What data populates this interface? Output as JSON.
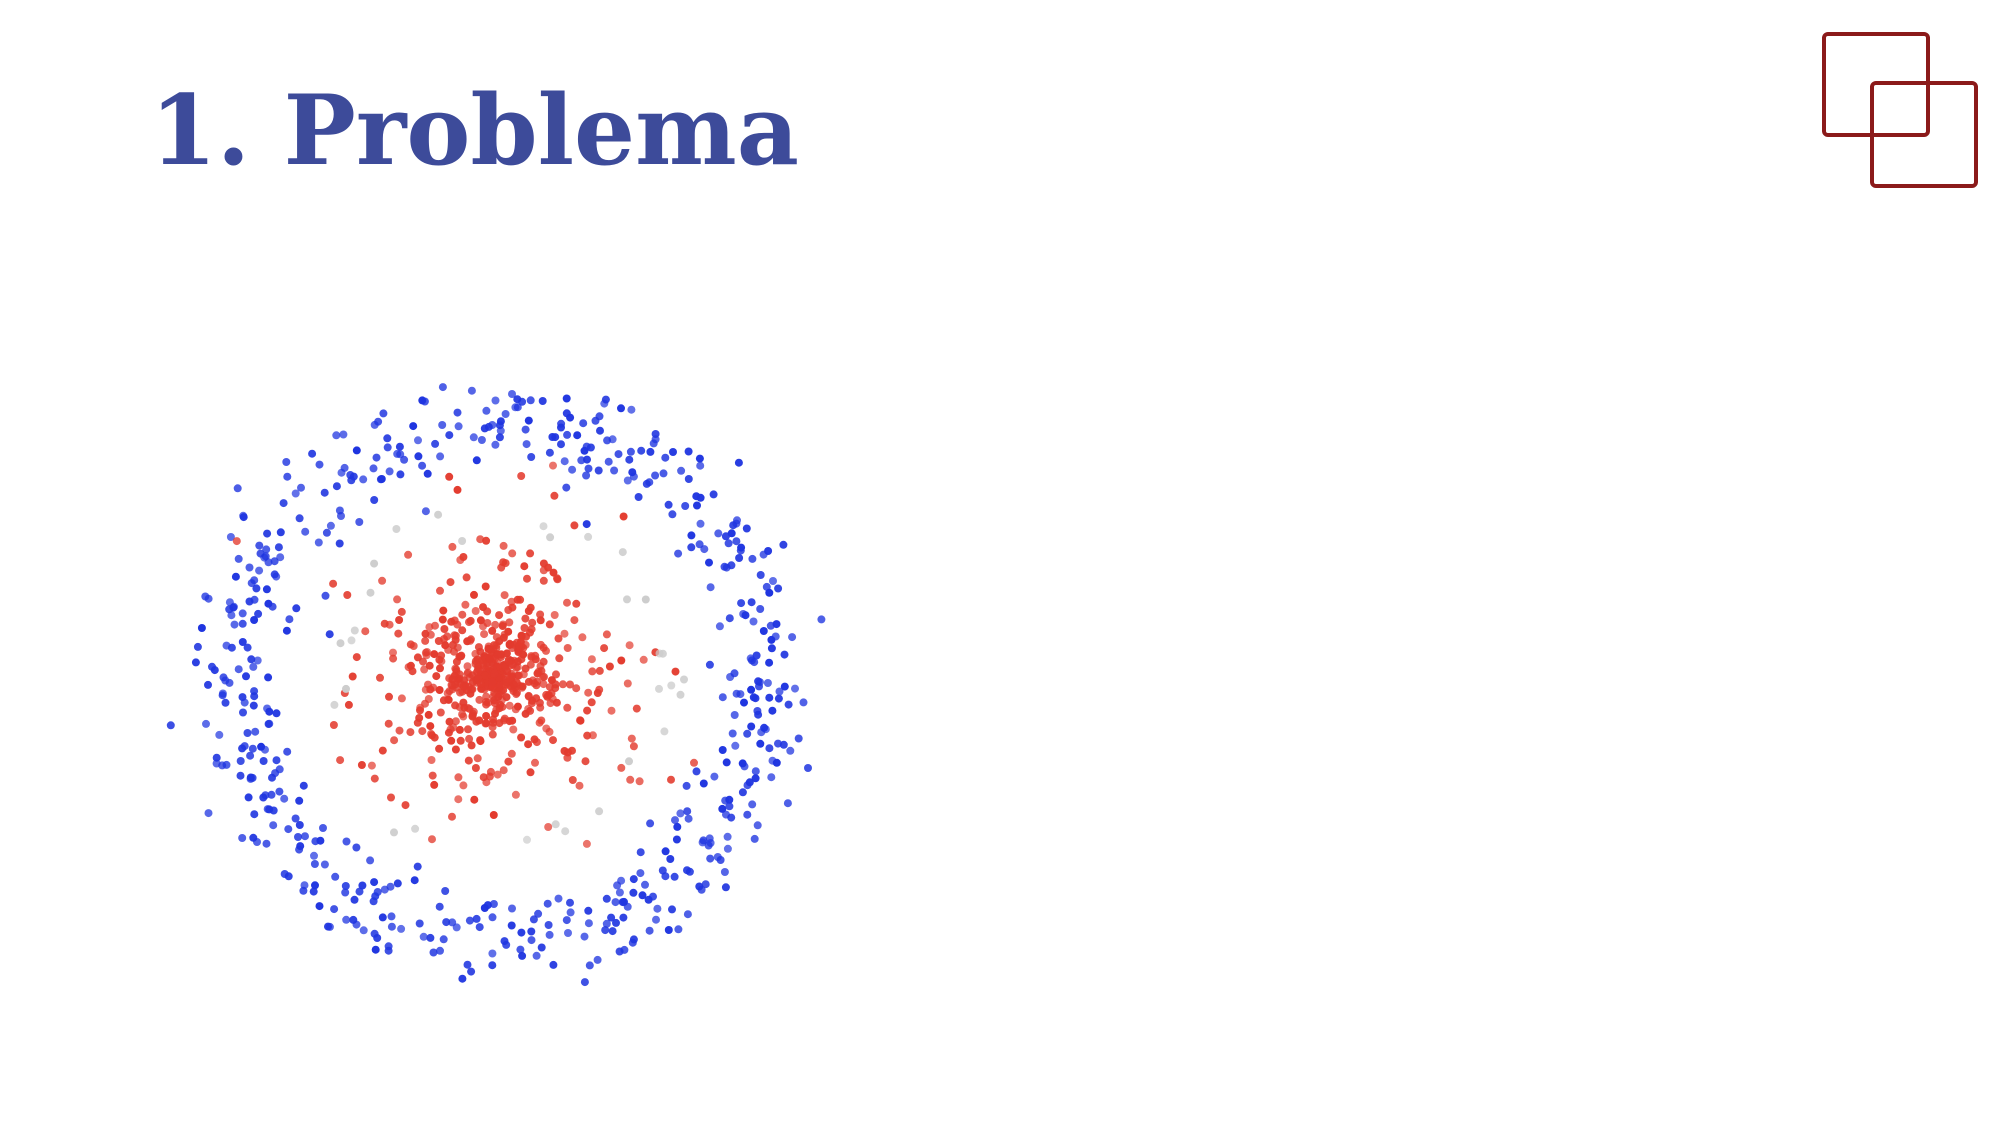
{
  "slide": {
    "title": "1. Problema"
  },
  "logo": {
    "icon": "overlapping-squares-logo",
    "color": "#8b1a1a"
  },
  "chart_data": {
    "type": "scatter",
    "title": "",
    "xlabel": "",
    "ylabel": "",
    "grid": false,
    "legend": "none",
    "axes_visible": false,
    "xlim": [
      -1.2,
      1.2
    ],
    "ylim": [
      -1.2,
      1.2
    ],
    "series": [
      {
        "color": "#1f35e0",
        "shape": "ring",
        "center": [
          0,
          0
        ],
        "radius": 1.0,
        "radial_spread": 0.09,
        "count": 560
      },
      {
        "color": "#e33b2e",
        "shape": "disc",
        "center": [
          -0.02,
          0.02
        ],
        "radius": 0.52,
        "radial_spread": 0.12,
        "count": 600
      },
      {
        "color": "#cccccc",
        "shape": "ring",
        "center": [
          0,
          0
        ],
        "radius": 0.62,
        "radial_spread": 0.06,
        "count": 30
      }
    ]
  }
}
